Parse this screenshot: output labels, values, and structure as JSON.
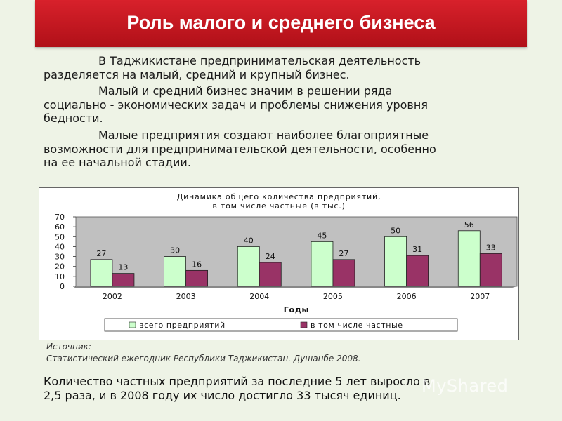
{
  "slide": {
    "title": "Роль малого и среднего бизнеса",
    "paragraphs": [
      [
        "В Таджикистане предпринимательская деятельность",
        "разделяется на малый, средний и крупный бизнес."
      ],
      [
        "Малый и средний бизнес значим в решении ряда",
        "социально - экономических задач и проблемы снижения уровня",
        "бедности."
      ],
      [
        "Малые предприятия создают наиболее благоприятные",
        "возможности для предпринимательской деятельности, особенно",
        "на ее начальной стадии."
      ]
    ],
    "source_label": "Источник:",
    "source_text": "Статистический ежегодник Республики Таджикистан. Душанбе 2008.",
    "bottom_lines": [
      "Количество частных предприятий за последние 5 лет выросло в",
      "2,5 раза, и в 2008 году их число достигло 33 тысяч единиц."
    ],
    "watermark": "MyShared"
  },
  "chart_data": {
    "type": "bar",
    "title_lines": [
      "Динамика общего количества предприятий,",
      "в том числе частные (в тыс.)"
    ],
    "xlabel": "Годы",
    "ylabel": "",
    "categories": [
      "2002",
      "2003",
      "2004",
      "2005",
      "2006",
      "2007"
    ],
    "series": [
      {
        "name": "всего предприятий",
        "values": [
          27,
          30,
          40,
          45,
          50,
          56
        ],
        "color": "#ccffcc"
      },
      {
        "name": "в том числе частные",
        "values": [
          13,
          16,
          24,
          27,
          31,
          33
        ],
        "color": "#993366"
      }
    ],
    "ylim": [
      0,
      70
    ],
    "yticks": [
      0,
      10,
      20,
      30,
      40,
      50,
      60,
      70
    ],
    "grid": false,
    "legend": "bottom",
    "plot_background": "#c0c0c0"
  }
}
